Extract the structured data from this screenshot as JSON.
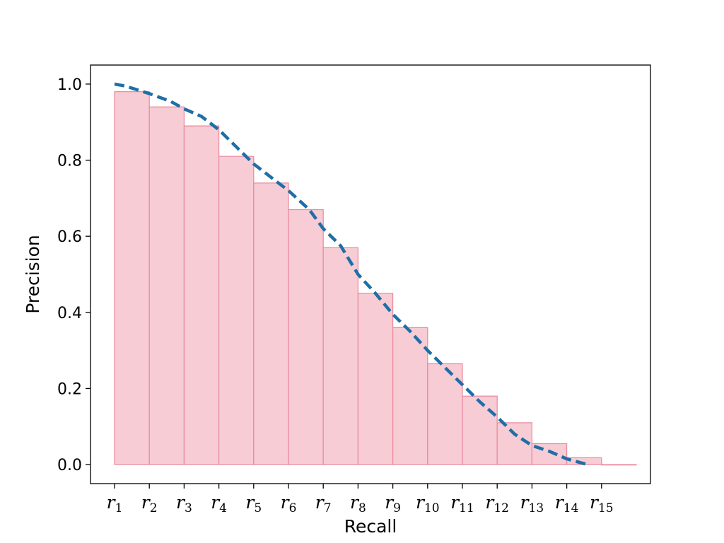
{
  "chart_data": {
    "type": "bar",
    "xlabel": "Recall",
    "ylabel": "Precision",
    "ylim": [
      -0.05,
      1.05
    ],
    "yticks": [
      0.0,
      0.2,
      0.4,
      0.6,
      0.8,
      1.0
    ],
    "ytick_labels": [
      "0.0",
      "0.2",
      "0.4",
      "0.6",
      "0.8",
      "1.0"
    ],
    "categories": [
      {
        "base": "r",
        "sub": "1"
      },
      {
        "base": "r",
        "sub": "2"
      },
      {
        "base": "r",
        "sub": "3"
      },
      {
        "base": "r",
        "sub": "4"
      },
      {
        "base": "r",
        "sub": "5"
      },
      {
        "base": "r",
        "sub": "6"
      },
      {
        "base": "r",
        "sub": "7"
      },
      {
        "base": "r",
        "sub": "8"
      },
      {
        "base": "r",
        "sub": "9"
      },
      {
        "base": "r",
        "sub": "10"
      },
      {
        "base": "r",
        "sub": "11"
      },
      {
        "base": "r",
        "sub": "12"
      },
      {
        "base": "r",
        "sub": "13"
      },
      {
        "base": "r",
        "sub": "14"
      },
      {
        "base": "r",
        "sub": "15"
      }
    ],
    "bars": {
      "values": [
        0.98,
        0.94,
        0.89,
        0.81,
        0.74,
        0.67,
        0.57,
        0.45,
        0.36,
        0.265,
        0.18,
        0.11,
        0.055,
        0.018,
        0.0
      ],
      "fill": "#f7ccd4",
      "edge": "#e8899c"
    },
    "curve": {
      "x": [
        1,
        1.3,
        2,
        2.6,
        3,
        3.5,
        4,
        4.5,
        5,
        5.5,
        6,
        6.6,
        7,
        7.5,
        8,
        8.5,
        9,
        9.5,
        10,
        10.5,
        11,
        11.5,
        12,
        12.5,
        13,
        13.5,
        14,
        14.6
      ],
      "y": [
        1.0,
        0.995,
        0.975,
        0.955,
        0.935,
        0.915,
        0.88,
        0.835,
        0.79,
        0.755,
        0.72,
        0.67,
        0.62,
        0.575,
        0.5,
        0.45,
        0.395,
        0.35,
        0.3,
        0.255,
        0.21,
        0.165,
        0.125,
        0.08,
        0.05,
        0.035,
        0.015,
        0.0
      ],
      "color": "#1f6ea6",
      "style": "dashed"
    }
  }
}
